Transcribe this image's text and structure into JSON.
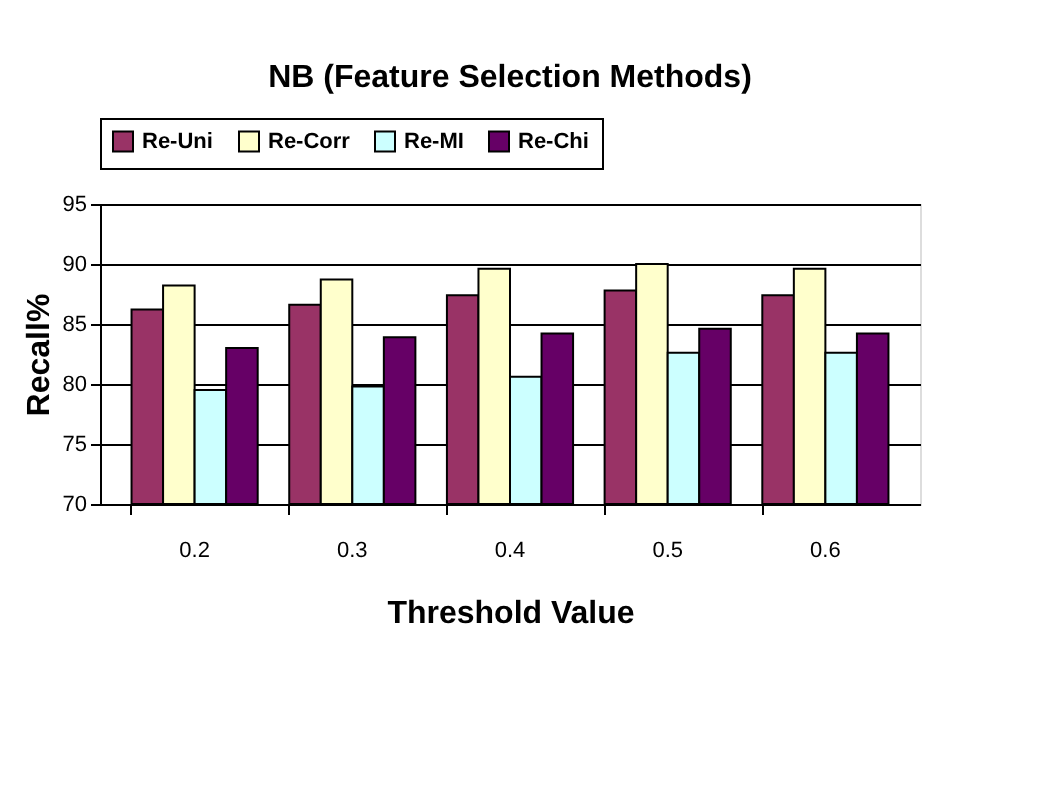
{
  "chart_data": {
    "type": "bar",
    "title": "NB (Feature Selection Methods)",
    "xlabel": "Threshold Value",
    "ylabel": "Recall%",
    "categories": [
      "0.2",
      "0.3",
      "0.4",
      "0.5",
      "0.6"
    ],
    "series": [
      {
        "name": "Re-Uni",
        "color": "#993366",
        "values": [
          86.2,
          86.6,
          87.4,
          87.8,
          87.4
        ]
      },
      {
        "name": "Re-Corr",
        "color": "#ffffcc",
        "values": [
          88.2,
          88.7,
          89.6,
          90.0,
          89.6
        ]
      },
      {
        "name": "Re-MI",
        "color": "#ccffff",
        "values": [
          79.5,
          79.8,
          80.6,
          82.6,
          82.6
        ]
      },
      {
        "name": "Re-Chi",
        "color": "#660066",
        "values": [
          83.0,
          83.9,
          84.2,
          84.6,
          84.2
        ]
      }
    ],
    "ylim": [
      70,
      95
    ],
    "yticks": [
      70,
      75,
      80,
      85,
      90,
      95
    ],
    "grid": "y",
    "legend": "top"
  }
}
